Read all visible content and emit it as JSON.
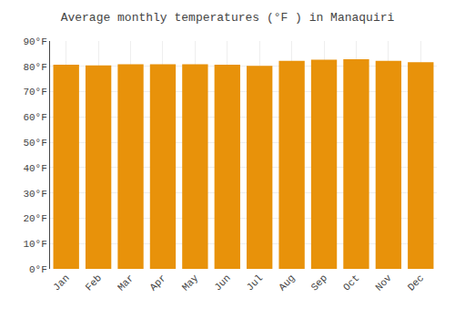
{
  "chart_data": {
    "type": "bar",
    "title": "Average monthly temperatures (°F ) in Manaquiri",
    "categories": [
      "Jan",
      "Feb",
      "Mar",
      "Apr",
      "May",
      "Jun",
      "Jul",
      "Aug",
      "Sep",
      "Oct",
      "Nov",
      "Dec"
    ],
    "values": [
      80.6,
      80.4,
      80.8,
      80.8,
      80.8,
      80.6,
      80.2,
      82.2,
      82.6,
      82.8,
      82.2,
      81.6
    ],
    "color": "#E8920A",
    "ylim": [
      0,
      90
    ],
    "yticks": [
      {
        "value": 0,
        "label": "0°F"
      },
      {
        "value": 10,
        "label": "10°F"
      },
      {
        "value": 20,
        "label": "20°F"
      },
      {
        "value": 30,
        "label": "30°F"
      },
      {
        "value": 40,
        "label": "40°F"
      },
      {
        "value": 50,
        "label": "50°F"
      },
      {
        "value": 60,
        "label": "60°F"
      },
      {
        "value": 70,
        "label": "70°F"
      },
      {
        "value": 80,
        "label": "80°F"
      },
      {
        "value": 90,
        "label": "90°F"
      }
    ],
    "grid": true
  }
}
